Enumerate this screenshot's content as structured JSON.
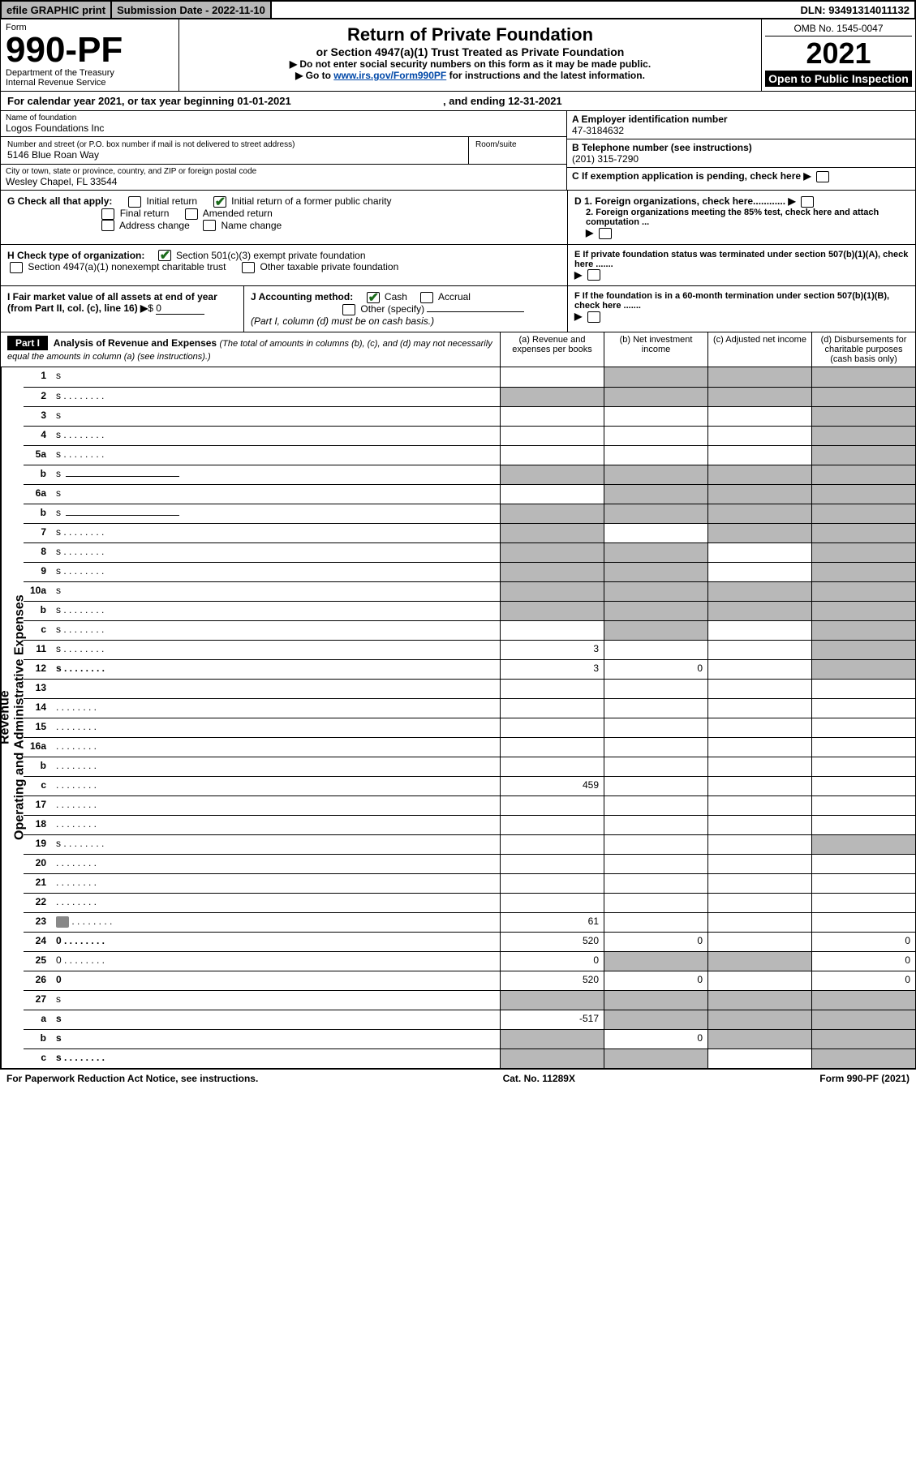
{
  "topbar": {
    "efile": "efile GRAPHIC print",
    "submission": "Submission Date - 2022-11-10",
    "dln": "DLN: 93491314011132"
  },
  "header": {
    "form_label": "Form",
    "form_number": "990-PF",
    "dept1": "Department of the Treasury",
    "dept2": "Internal Revenue Service",
    "title": "Return of Private Foundation",
    "subtitle": "or Section 4947(a)(1) Trust Treated as Private Foundation",
    "note1": "▶ Do not enter social security numbers on this form as it may be made public.",
    "note2_pre": "▶ Go to ",
    "note2_link": "www.irs.gov/Form990PF",
    "note2_post": " for instructions and the latest information.",
    "omb": "OMB No. 1545-0047",
    "year": "2021",
    "open": "Open to Public Inspection"
  },
  "yearline": {
    "pre": "For calendar year 2021, or tax year beginning ",
    "begin": "01-01-2021",
    "mid": ", and ending ",
    "end": "12-31-2021"
  },
  "id": {
    "name_lbl": "Name of foundation",
    "name": "Logos Foundations Inc",
    "addr_lbl": "Number and street (or P.O. box number if mail is not delivered to street address)",
    "room_lbl": "Room/suite",
    "addr": "5146 Blue Roan Way",
    "city_lbl": "City or town, state or province, country, and ZIP or foreign postal code",
    "city": "Wesley Chapel, FL  33544",
    "a_lbl": "A Employer identification number",
    "a_val": "47-3184632",
    "b_lbl": "B Telephone number (see instructions)",
    "b_val": "(201) 315-7290",
    "c_lbl": "C If exemption application is pending, check here",
    "d1": "D 1. Foreign organizations, check here............",
    "d2": "2. Foreign organizations meeting the 85% test, check here and attach computation ...",
    "e": "E  If private foundation status was terminated under section 507(b)(1)(A), check here .......",
    "f": "F  If the foundation is in a 60-month termination under section 507(b)(1)(B), check here .......",
    "g_lbl": "G Check all that apply:",
    "g_opts": [
      "Initial return",
      "Initial return of a former public charity",
      "Final return",
      "Amended return",
      "Address change",
      "Name change"
    ],
    "h_lbl": "H Check type of organization:",
    "h_opts": [
      "Section 501(c)(3) exempt private foundation",
      "Section 4947(a)(1) nonexempt charitable trust",
      "Other taxable private foundation"
    ],
    "i_lbl": "I Fair market value of all assets at end of year (from Part II, col. (c), line 16)",
    "i_val": "0",
    "j_lbl": "J Accounting method:",
    "j_opts": [
      "Cash",
      "Accrual",
      "Other (specify)"
    ],
    "j_note": "(Part I, column (d) must be on cash basis.)"
  },
  "part1": {
    "label": "Part I",
    "title": "Analysis of Revenue and Expenses",
    "title_note": "(The total of amounts in columns (b), (c), and (d) may not necessarily equal the amounts in column (a) (see instructions).)",
    "cols": {
      "a": "(a)   Revenue and expenses per books",
      "b": "(b)   Net investment income",
      "c": "(c)   Adjusted net income",
      "d": "(d)   Disbursements for charitable purposes (cash basis only)"
    }
  },
  "side": {
    "rev": "Revenue",
    "exp": "Operating and Administrative Expenses"
  },
  "rows": [
    {
      "n": "1",
      "d": "s",
      "a": "",
      "b": "s",
      "c": "s"
    },
    {
      "n": "2",
      "d": "s",
      "dots": true,
      "a": "s",
      "b": "s",
      "c": "s",
      "bold_not": true
    },
    {
      "n": "3",
      "d": "s",
      "a": "",
      "b": "",
      "c": ""
    },
    {
      "n": "4",
      "d": "s",
      "dots": true,
      "a": "",
      "b": "",
      "c": ""
    },
    {
      "n": "5a",
      "d": "s",
      "dots": true,
      "a": "",
      "b": "",
      "c": ""
    },
    {
      "n": "b",
      "d": "s",
      "line": true,
      "a": "s",
      "b": "s",
      "c": "s"
    },
    {
      "n": "6a",
      "d": "s",
      "a": "",
      "b": "s",
      "c": "s"
    },
    {
      "n": "b",
      "d": "s",
      "line": true,
      "a": "s",
      "b": "s",
      "c": "s"
    },
    {
      "n": "7",
      "d": "s",
      "dots": true,
      "a": "s",
      "b": "",
      "c": "s"
    },
    {
      "n": "8",
      "d": "s",
      "dots": true,
      "a": "s",
      "b": "s",
      "c": ""
    },
    {
      "n": "9",
      "d": "s",
      "dots": true,
      "a": "s",
      "b": "s",
      "c": ""
    },
    {
      "n": "10a",
      "d": "s",
      "box": true,
      "a": "s",
      "b": "s",
      "c": "s"
    },
    {
      "n": "b",
      "d": "s",
      "dots": true,
      "box": true,
      "a": "s",
      "b": "s",
      "c": "s"
    },
    {
      "n": "c",
      "d": "s",
      "dots": true,
      "a": "",
      "b": "s",
      "c": ""
    },
    {
      "n": "11",
      "d": "s",
      "dots": true,
      "a": "3",
      "b": "",
      "c": ""
    },
    {
      "n": "12",
      "d": "s",
      "dots": true,
      "bold": true,
      "a": "3",
      "b": "0",
      "c": ""
    },
    {
      "n": "13",
      "d": "",
      "a": "",
      "b": "",
      "c": ""
    },
    {
      "n": "14",
      "d": "",
      "dots": true,
      "a": "",
      "b": "",
      "c": ""
    },
    {
      "n": "15",
      "d": "",
      "dots": true,
      "a": "",
      "b": "",
      "c": ""
    },
    {
      "n": "16a",
      "d": "",
      "dots": true,
      "a": "",
      "b": "",
      "c": ""
    },
    {
      "n": "b",
      "d": "",
      "dots": true,
      "a": "",
      "b": "",
      "c": ""
    },
    {
      "n": "c",
      "d": "",
      "dots": true,
      "a": "459",
      "b": "",
      "c": ""
    },
    {
      "n": "17",
      "d": "",
      "dots": true,
      "a": "",
      "b": "",
      "c": ""
    },
    {
      "n": "18",
      "d": "",
      "dots": true,
      "a": "",
      "b": "",
      "c": ""
    },
    {
      "n": "19",
      "d": "s",
      "dots": true,
      "a": "",
      "b": "",
      "c": ""
    },
    {
      "n": "20",
      "d": "",
      "dots": true,
      "a": "",
      "b": "",
      "c": ""
    },
    {
      "n": "21",
      "d": "",
      "dots": true,
      "a": "",
      "b": "",
      "c": ""
    },
    {
      "n": "22",
      "d": "",
      "dots": true,
      "a": "",
      "b": "",
      "c": ""
    },
    {
      "n": "23",
      "d": "",
      "dots": true,
      "icon": true,
      "a": "61",
      "b": "",
      "c": ""
    },
    {
      "n": "24",
      "d": "0",
      "dots": true,
      "bold": true,
      "a": "520",
      "b": "0",
      "c": ""
    },
    {
      "n": "25",
      "d": "0",
      "dots": true,
      "a": "0",
      "b": "s",
      "c": "s"
    },
    {
      "n": "26",
      "d": "0",
      "bold": true,
      "a": "520",
      "b": "0",
      "c": ""
    },
    {
      "n": "27",
      "d": "s",
      "a": "s",
      "b": "s",
      "c": "s"
    },
    {
      "n": "a",
      "d": "s",
      "bold": true,
      "a": "-517",
      "b": "s",
      "c": "s"
    },
    {
      "n": "b",
      "d": "s",
      "bold": true,
      "a": "s",
      "b": "0",
      "c": "s"
    },
    {
      "n": "c",
      "d": "s",
      "bold": true,
      "dots": true,
      "a": "s",
      "b": "s",
      "c": ""
    }
  ],
  "footer": {
    "left": "For Paperwork Reduction Act Notice, see instructions.",
    "mid": "Cat. No. 11289X",
    "right": "Form 990-PF (2021)"
  },
  "colors": {
    "shade": "#b8b8b8",
    "link": "#0048a8",
    "check": "#1a6b1a"
  }
}
